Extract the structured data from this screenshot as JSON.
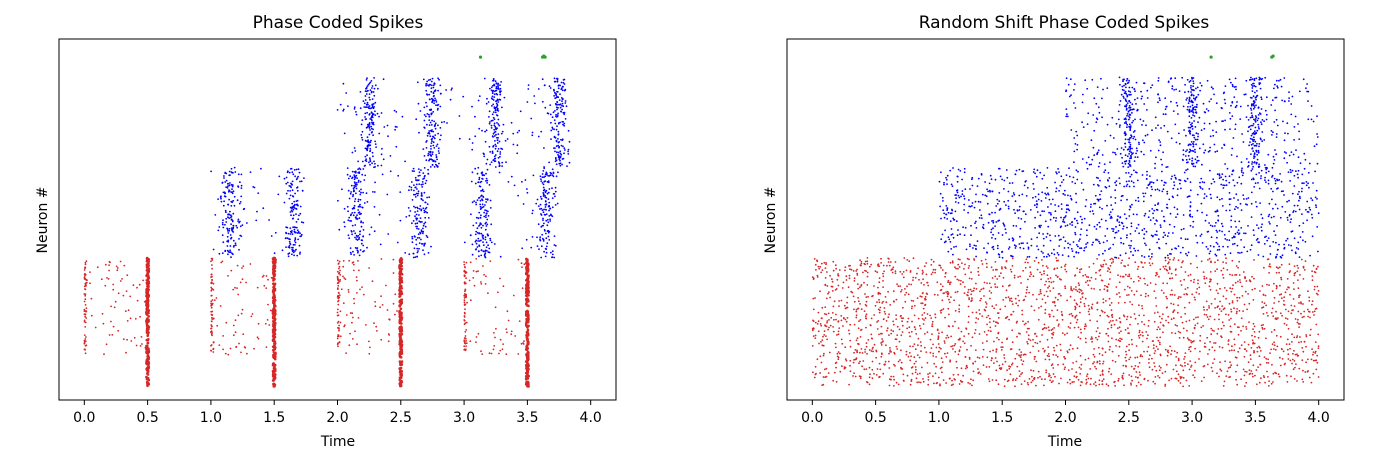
{
  "chart_data": [
    {
      "type": "scatter",
      "title": "Phase Coded Spikes",
      "xlabel": "Time",
      "ylabel": "Neuron #",
      "xlim": [
        -0.2,
        4.2
      ],
      "xticks": [
        "0.0",
        "0.5",
        "1.0",
        "1.5",
        "2.0",
        "2.5",
        "3.0",
        "3.5",
        "4.0"
      ],
      "yticks": [],
      "grid": false,
      "legend": "none",
      "series": [
        {
          "color": "#d62728",
          "marker": "point",
          "neuron_band": [
            1.0,
            3.15
          ],
          "description_values": {
            "phase_windows": [
              [
                0.0,
                0.5
              ],
              [
                1.0,
                1.5
              ],
              [
                2.0,
                2.5
              ],
              [
                3.0,
                3.5
              ]
            ],
            "dense_phase_times": [
              0.0,
              1.0,
              2.0,
              3.0
            ],
            "synchronous_times": [
              0.5,
              1.5,
              2.5,
              3.5
            ],
            "synchronous_band": [
              0.3,
              3.15
            ]
          }
        },
        {
          "color": "#0000ff",
          "marker": "point",
          "neuron_band": [
            3.15,
            5.15
          ],
          "description_values": {
            "phase_windows": [
              [
                1.0,
                1.75
              ],
              [
                2.0,
                2.75
              ],
              [
                3.0,
                3.75
              ]
            ],
            "cluster_centers": [
              1.15,
              1.65,
              2.15,
              2.65,
              3.15,
              3.65
            ],
            "upper_band": [
              5.15,
              7.15
            ],
            "upper_phase_windows": [
              [
                2.0,
                3.75
              ]
            ],
            "upper_cluster_centers": [
              2.25,
              2.75,
              3.25,
              3.75
            ]
          }
        },
        {
          "color": "#2ca02c",
          "marker": "point",
          "points": [
            [
              3.13,
              7.6
            ],
            [
              3.62,
              7.6
            ],
            [
              3.63,
              7.62
            ],
            [
              3.64,
              7.6
            ]
          ]
        }
      ]
    },
    {
      "type": "scatter",
      "title": "Random Shift Phase Coded Spikes",
      "xlabel": "Time",
      "ylabel": "Neuron #",
      "xlim": [
        -0.2,
        4.2
      ],
      "xticks": [
        "0.0",
        "0.5",
        "1.0",
        "1.5",
        "2.0",
        "2.5",
        "3.0",
        "3.5",
        "4.0"
      ],
      "yticks": [],
      "grid": false,
      "legend": "none",
      "series": [
        {
          "color": "#d62728",
          "marker": "point",
          "neuron_band": [
            0.3,
            3.15
          ],
          "time_range": [
            0.0,
            4.0
          ],
          "distribution": "uniform"
        },
        {
          "color": "#0000ff",
          "marker": "point",
          "neuron_band": [
            3.15,
            5.15
          ],
          "time_range": [
            1.0,
            4.0
          ],
          "upper_band": [
            5.15,
            7.15
          ],
          "upper_time_range": [
            2.0,
            4.0
          ],
          "cluster_centers": [
            2.5,
            3.0,
            3.5
          ]
        },
        {
          "color": "#2ca02c",
          "marker": "point",
          "points": [
            [
              3.15,
              7.6
            ],
            [
              3.63,
              7.6
            ],
            [
              3.64,
              7.62
            ]
          ]
        }
      ]
    }
  ]
}
